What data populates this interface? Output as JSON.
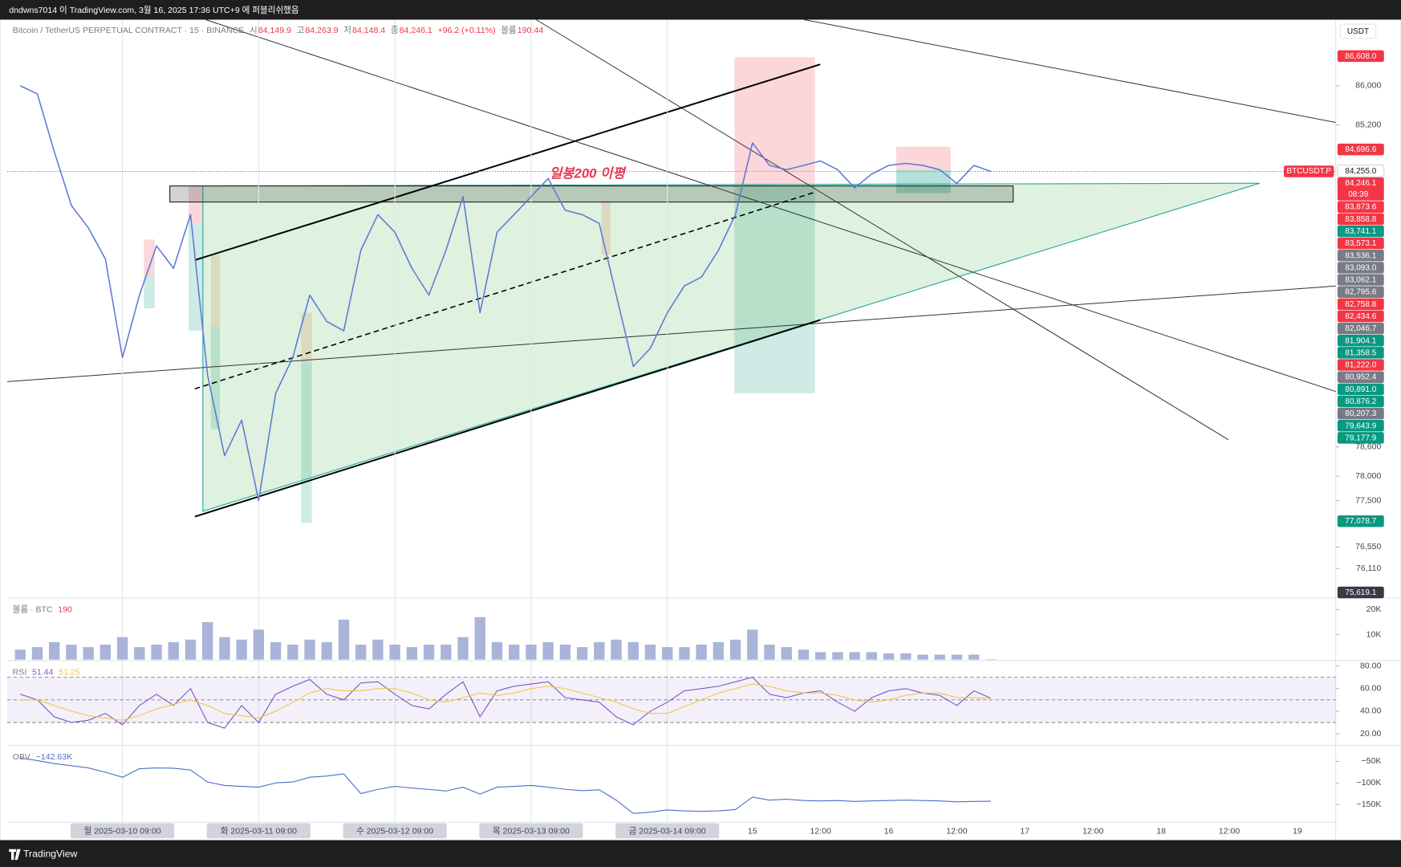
{
  "header": {
    "author_line": "dndwns7014 이 TradingView.com, 3월 16, 2025 17:36 UTC+9 에 퍼블리쉬했음"
  },
  "chart_data": [
    {
      "type": "line",
      "title": "Bitcoin / TetherUS PERPETUAL CONTRACT · 15 · BINANCE",
      "ohlc": [
        {
          "label": "시",
          "value": "84,149.9"
        },
        {
          "label": "고",
          "value": "84,263.9"
        },
        {
          "label": "저",
          "value": "84,148.4"
        },
        {
          "label": "종",
          "value": "84,246.1"
        }
      ],
      "change": "+96.2 (+0.11%)",
      "volume_label": "볼륨",
      "volume_value": "190.44",
      "currency": "USDT",
      "annotation": "일봉200 이평",
      "countdown": "08:39",
      "categories": [
        null,
        null,
        null,
        null,
        null,
        null,
        "월 2025-03-10 09:00",
        null,
        null,
        null,
        null,
        null,
        null,
        null,
        "화 2025-03-11 09:00",
        null,
        null,
        null,
        null,
        null,
        null,
        null,
        "수 2025-03-12 09:00",
        null,
        null,
        null,
        null,
        null,
        null,
        null,
        "목 2025-03-13 09:00",
        null,
        null,
        null,
        null,
        null,
        null,
        null,
        "금 2025-03-14 09:00",
        null,
        null,
        null,
        null,
        "15",
        null,
        null,
        null,
        "12:00",
        null,
        null,
        null,
        "16",
        null,
        null,
        null,
        "12:00",
        null,
        null,
        null,
        "17",
        null,
        null,
        null,
        "12:00",
        null,
        null,
        null,
        "18",
        null,
        null,
        null,
        "12:00",
        null,
        null,
        null,
        "19"
      ],
      "series": [
        {
          "name": "BTCUSDT.P",
          "color": "#5b7bd5",
          "values": [
            86000,
            85835,
            84650,
            83550,
            83090,
            82450,
            80430,
            81710,
            82720,
            82260,
            83360,
            80070,
            78420,
            79150,
            77500,
            79700,
            80430,
            81710,
            81170,
            80980,
            82630,
            83360,
            83000,
            82260,
            81710,
            82630,
            83730,
            81350,
            83000,
            83360,
            83730,
            84100,
            83450,
            83360,
            83180,
            81710,
            80250,
            80620,
            81350,
            81900,
            82080,
            82630,
            83360,
            84830,
            84370,
            84280,
            84370,
            84460,
            84280,
            83910,
            84190,
            84370,
            84410,
            84370,
            84280,
            84000,
            84370,
            84246.1,
            null,
            null,
            null,
            null,
            null,
            null,
            null,
            null,
            null,
            null,
            null,
            null,
            null,
            null,
            null,
            null,
            null,
            null
          ]
        }
      ],
      "ylim": [
        75524,
        87355
      ],
      "yticks": [
        {
          "value": 76110,
          "label": "76,110"
        },
        {
          "value": 76550,
          "label": "76,550"
        },
        {
          "value": 77500,
          "label": "77,500"
        },
        {
          "value": 78000,
          "label": "78,000"
        },
        {
          "value": 78600,
          "label": "78,600"
        },
        {
          "value": 85200,
          "label": "85,200"
        },
        {
          "value": 86000,
          "label": "86,000"
        }
      ],
      "price_badges": [
        {
          "value": 86608.0,
          "label": "86,608.0",
          "color": "#f23645"
        },
        {
          "value": 84696.6,
          "label": "84,696.6",
          "color": "#f23645"
        },
        {
          "value": 84255.0,
          "label": "84,255.0",
          "color": "#ffffff"
        },
        {
          "value": 84246.1,
          "label": "84,246.1",
          "color": "#f23645"
        },
        {
          "value": 83873.6,
          "label": "83,873.6",
          "color": "#f23645"
        },
        {
          "value": 83858.8,
          "label": "83,858.8",
          "color": "#f23645"
        },
        {
          "value": 83741.1,
          "label": "83,741.1",
          "color": "#089981"
        },
        {
          "value": 83573.1,
          "label": "83,573.1",
          "color": "#f23645"
        },
        {
          "value": 83536.1,
          "label": "83,536.1",
          "color": "#787b86"
        },
        {
          "value": 83093.0,
          "label": "83,093.0",
          "color": "#787b86"
        },
        {
          "value": 83062.1,
          "label": "83,062.1",
          "color": "#787b86"
        },
        {
          "value": 82795.6,
          "label": "82,795.6",
          "color": "#787b86"
        },
        {
          "value": 82758.8,
          "label": "82,758.8",
          "color": "#f23645"
        },
        {
          "value": 82434.6,
          "label": "82,434.6",
          "color": "#f23645"
        },
        {
          "value": 82046.7,
          "label": "82,046.7",
          "color": "#787b86"
        },
        {
          "value": 81904.1,
          "label": "81,904.1",
          "color": "#089981"
        },
        {
          "value": 81358.5,
          "label": "81,358.5",
          "color": "#089981"
        },
        {
          "value": 81222.0,
          "label": "81,222.0",
          "color": "#f23645"
        },
        {
          "value": 80952.4,
          "label": "80,952.4",
          "color": "#787b86"
        },
        {
          "value": 80891.0,
          "label": "80,891.0",
          "color": "#089981"
        },
        {
          "value": 80876.2,
          "label": "80,876.2",
          "color": "#089981"
        },
        {
          "value": 80207.3,
          "label": "80,207.3",
          "color": "#787b86"
        },
        {
          "value": 79643.9,
          "label": "79,643.9",
          "color": "#089981"
        },
        {
          "value": 79177.9,
          "label": "79,177.9",
          "color": "#089981"
        },
        {
          "value": 77078.7,
          "label": "77,078.7",
          "color": "#089981"
        },
        {
          "value": 75619.1,
          "label": "75,619.1",
          "color": "#363a45"
        }
      ]
    },
    {
      "type": "bar",
      "title": "볼륨 · BTC",
      "series": [
        {
          "color": "#a9b4d8",
          "values": [
            4000,
            5000,
            7000,
            6000,
            5000,
            6000,
            9000,
            5000,
            6000,
            7000,
            8000,
            15000,
            9000,
            8000,
            12000,
            7000,
            6000,
            8000,
            7000,
            16000,
            6000,
            8000,
            6000,
            5000,
            6000,
            6000,
            9000,
            17000,
            7000,
            6000,
            6000,
            7000,
            6000,
            5000,
            7000,
            8000,
            7000,
            6000,
            5000,
            5000,
            6000,
            7000,
            8000,
            12000,
            6000,
            5000,
            4000,
            3000,
            3000,
            3000,
            3000,
            2500,
            2500,
            2000,
            2000,
            2000,
            2000,
            190,
            null,
            null,
            null,
            null,
            null,
            null,
            null,
            null,
            null,
            null,
            null,
            null,
            null,
            null,
            null,
            null,
            null,
            null
          ]
        }
      ],
      "legend_colors": [
        "#f23645"
      ],
      "ylim": [
        0,
        24300
      ],
      "yticks": [
        {
          "value": 10000,
          "label": "10K"
        },
        {
          "value": 20000,
          "label": "20K"
        }
      ]
    },
    {
      "type": "line",
      "title": "RSI",
      "series": [
        {
          "color": "#7e57c2",
          "values": [
            55,
            50,
            35,
            30,
            32,
            38,
            28,
            45,
            55,
            45,
            60,
            30,
            25,
            45,
            30,
            55,
            62,
            68,
            55,
            50,
            65,
            66,
            55,
            45,
            42,
            55,
            66,
            35,
            58,
            62,
            64,
            66,
            52,
            50,
            48,
            35,
            28,
            40,
            48,
            58,
            60,
            62,
            66,
            70,
            55,
            52,
            56,
            58,
            48,
            40,
            52,
            58,
            60,
            56,
            54,
            45,
            58,
            51.44,
            null,
            null,
            null,
            null,
            null,
            null,
            null,
            null,
            null,
            null,
            null,
            null,
            null,
            null,
            null,
            null,
            null,
            null
          ]
        },
        {
          "color": "#f7c548",
          "values": [
            50,
            50,
            45,
            40,
            36,
            34,
            32,
            36,
            42,
            46,
            50,
            45,
            38,
            36,
            34,
            40,
            48,
            56,
            60,
            58,
            58,
            60,
            60,
            56,
            50,
            48,
            52,
            56,
            54,
            56,
            60,
            62,
            60,
            56,
            52,
            48,
            42,
            38,
            38,
            44,
            50,
            56,
            60,
            64,
            62,
            58,
            56,
            56,
            54,
            50,
            48,
            50,
            54,
            56,
            56,
            52,
            52,
            51.25,
            null,
            null,
            null,
            null,
            null,
            null,
            null,
            null,
            null,
            null,
            null,
            null,
            null,
            null,
            null,
            null,
            null,
            null
          ]
        }
      ],
      "band_levels": [
        70,
        50,
        30
      ],
      "ylim": [
        10.5,
        84
      ],
      "yticks": [
        {
          "value": 20,
          "label": "20.00"
        },
        {
          "value": 40,
          "label": "40.00"
        },
        {
          "value": 60,
          "label": "60.00"
        },
        {
          "value": 80,
          "label": "80.00"
        }
      ]
    },
    {
      "type": "line",
      "title": "OBV",
      "current_label": "−142.63K",
      "series": [
        {
          "color": "#4a6fc9",
          "values": [
            -42000,
            -48000,
            -55000,
            -60000,
            -65000,
            -75000,
            -87000,
            -67000,
            -65000,
            -66000,
            -70000,
            -98000,
            -106000,
            -108000,
            -110000,
            -100000,
            -98000,
            -87000,
            -84000,
            -79000,
            -125000,
            -115000,
            -108000,
            -112000,
            -115000,
            -119000,
            -110000,
            -126000,
            -110000,
            -108000,
            -106000,
            -110000,
            -115000,
            -118000,
            -116000,
            -140000,
            -171000,
            -168000,
            -163000,
            -165000,
            -166000,
            -165000,
            -162000,
            -133000,
            -140000,
            -138000,
            -141000,
            -142000,
            -141000,
            -143000,
            -142000,
            -141000,
            -140000,
            -141000,
            -142000,
            -144000,
            -143000,
            -142630,
            null,
            null,
            null,
            null,
            null,
            null,
            null,
            null,
            null,
            null,
            null,
            null,
            null,
            null,
            null,
            null,
            null,
            null
          ]
        }
      ],
      "ylim": [
        -175000,
        -15000
      ],
      "yticks": [
        {
          "value": -150000,
          "label": "−150K"
        },
        {
          "value": -100000,
          "label": "−100K"
        },
        {
          "value": -50000,
          "label": "−50K"
        }
      ]
    }
  ],
  "footer": {
    "brand": "TradingView"
  }
}
